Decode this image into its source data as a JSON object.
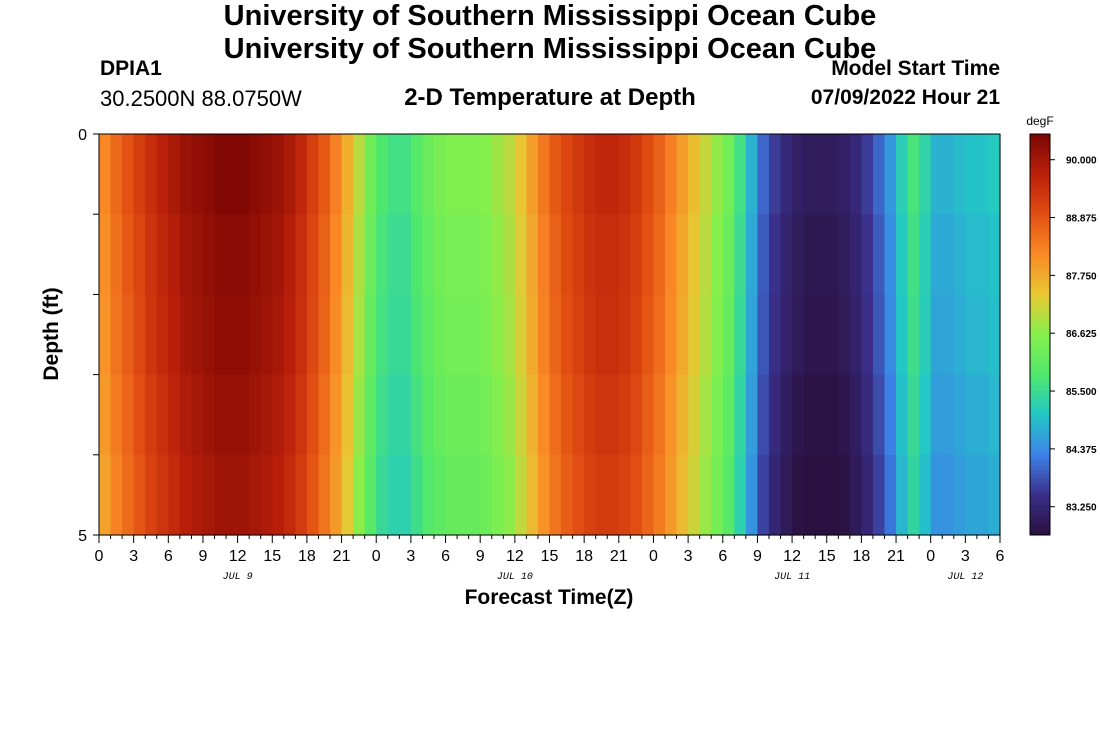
{
  "header": {
    "title": "University of Southern Mississippi Ocean Cube",
    "station": "DPIA1",
    "coords": "30.2500N  88.0750W",
    "subtitle": "2-D Temperature at Depth",
    "start_label": "Model Start Time",
    "start_value": "07/09/2022 Hour 21"
  },
  "footer": {
    "title": "University of Southern Mississippi Ocean Cube"
  },
  "colors": {
    "colormap": [
      "#2a1140",
      "#3a2f8a",
      "#3d82e8",
      "#22c7c6",
      "#4fe86c",
      "#86f04c",
      "#e9c733",
      "#f98a25",
      "#e24e12",
      "#b9200a",
      "#7a0503"
    ]
  },
  "chart_data": {
    "type": "heatmap",
    "title": "2-D Temperature at Depth",
    "xlabel": "Forecast Time(Z)",
    "ylabel": "Depth (ft)",
    "y_ticks": [
      "0",
      "5"
    ],
    "ylim": [
      0,
      5
    ],
    "x_ticks": [
      "0",
      "3",
      "6",
      "9",
      "12",
      "15",
      "18",
      "21",
      "0",
      "3",
      "6",
      "9",
      "12",
      "15",
      "18",
      "21",
      "0",
      "3",
      "6",
      "9",
      "12",
      "15",
      "18",
      "21",
      "0",
      "3",
      "6"
    ],
    "date_labels": [
      {
        "label": "JUL 9",
        "hour": 12
      },
      {
        "label": "JUL 10",
        "hour": 36
      },
      {
        "label": "JUL 11",
        "hour": 60
      },
      {
        "label": "JUL 12",
        "hour": 75
      }
    ],
    "x_hours_range": [
      0,
      78
    ],
    "depth_levels": 5,
    "colorbar": {
      "unit": "degF",
      "ticks": [
        "90.000",
        "88.875",
        "87.750",
        "86.625",
        "85.500",
        "84.375",
        "83.250"
      ],
      "range": [
        82.7,
        90.5
      ]
    },
    "hourly_temperature_degF": [
      88.2,
      88.6,
      88.9,
      89.2,
      89.5,
      89.7,
      89.9,
      90.1,
      90.2,
      90.3,
      90.4,
      90.4,
      90.4,
      90.3,
      90.2,
      90.1,
      89.9,
      89.6,
      89.2,
      88.8,
      88.3,
      87.7,
      87.0,
      86.3,
      85.8,
      85.6,
      85.6,
      85.9,
      86.2,
      86.4,
      86.5,
      86.5,
      86.5,
      86.6,
      86.8,
      87.0,
      87.4,
      87.9,
      88.4,
      88.8,
      89.1,
      89.3,
      89.5,
      89.6,
      89.6,
      89.5,
      89.3,
      89.0,
      88.7,
      88.3,
      87.9,
      87.5,
      87.1,
      86.7,
      86.3,
      85.6,
      84.8,
      84.0,
      83.6,
      83.3,
      83.1,
      83.0,
      83.0,
      83.0,
      83.1,
      83.3,
      83.6,
      84.0,
      84.5,
      85.2,
      85.7,
      85.3,
      84.8,
      84.8,
      84.9,
      85.0,
      85.0,
      85.1
    ],
    "depth_offsets_degF": [
      0,
      -0.1,
      -0.15,
      -0.25,
      -0.35
    ]
  }
}
